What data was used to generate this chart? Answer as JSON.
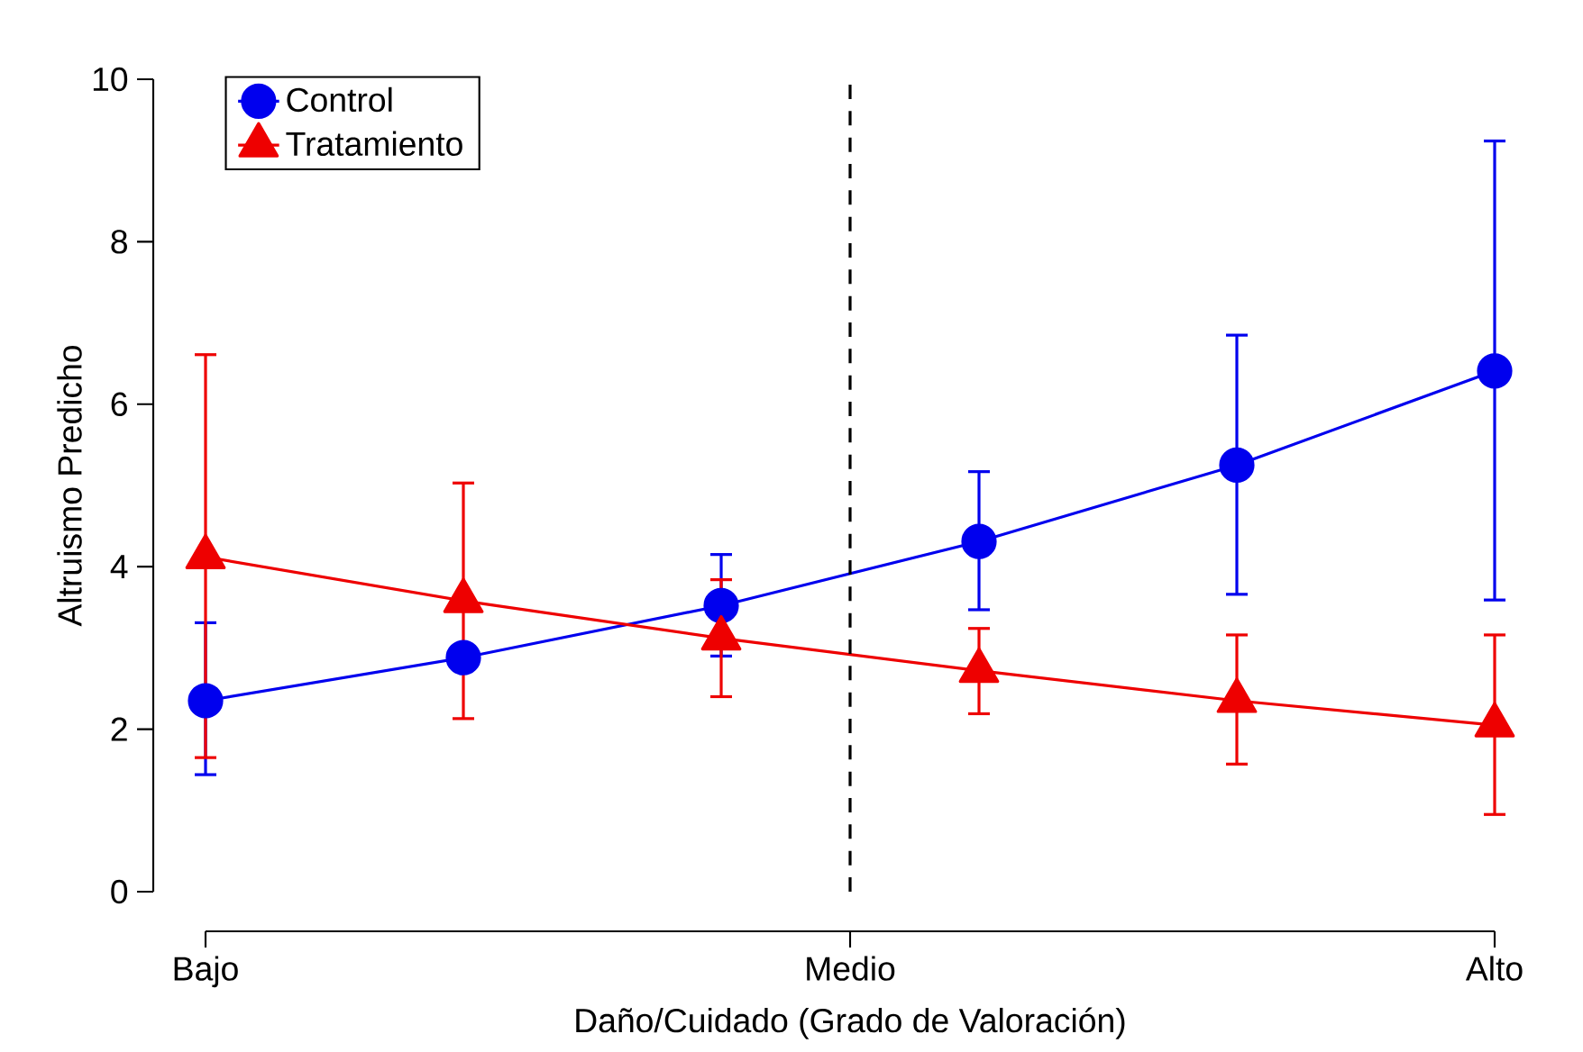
{
  "chart_data": {
    "type": "line",
    "xlabel": "Daño/Cuidado (Grado de Valoración)",
    "ylabel": "Altruismo Predicho",
    "categories": [
      "Bajo",
      null,
      null,
      null,
      null,
      "Alto"
    ],
    "ylim": [
      0,
      10
    ],
    "yticks": [
      0,
      2,
      4,
      6,
      8,
      10
    ],
    "series": [
      {
        "name": "Control",
        "color": "#0000ee",
        "marker": "circle",
        "values": [
          2.35,
          2.88,
          3.52,
          4.31,
          5.25,
          6.41
        ],
        "errors": [
          [
            1.44,
            3.31
          ],
          null,
          [
            2.9,
            4.15
          ],
          [
            3.47,
            5.17
          ],
          [
            3.66,
            6.85
          ],
          [
            3.59,
            9.24
          ]
        ]
      },
      {
        "name": "Tratamiento",
        "color": "#ee0000",
        "marker": "triangle",
        "values": [
          4.12,
          3.58,
          3.12,
          2.72,
          2.35,
          2.05
        ],
        "errors": [
          [
            1.65,
            6.61
          ],
          [
            2.13,
            5.03
          ],
          [
            2.4,
            3.84
          ],
          [
            2.19,
            3.24
          ],
          [
            1.57,
            3.16
          ],
          [
            0.95,
            3.16
          ]
        ]
      }
    ],
    "annotations": [
      "Medio"
    ],
    "legend": "top left",
    "grid": false
  }
}
